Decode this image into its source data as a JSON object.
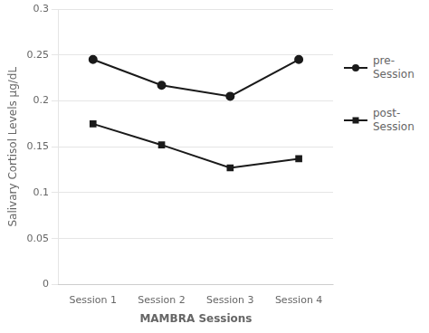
{
  "chart_data": {
    "type": "line",
    "categories": [
      "Session 1",
      "Session 2",
      "Session 3",
      "Session 4"
    ],
    "series": [
      {
        "name": "pre-\nSession",
        "color": "#1a1a1a",
        "marker": "circle",
        "values": [
          0.245,
          0.217,
          0.205,
          0.245
        ]
      },
      {
        "name": "post-\nSession",
        "color": "#1a1a1a",
        "marker": "square",
        "values": [
          0.175,
          0.152,
          0.127,
          0.137
        ]
      }
    ],
    "x_label": "MAMBRA Sessions",
    "y_label": "Salivary Cortisol Levels μg/dL",
    "ylim": [
      0,
      0.3
    ],
    "yticks": [
      0,
      0.05,
      0.1,
      0.15,
      0.2,
      0.25,
      0.3
    ],
    "grid": true,
    "legend": "right"
  }
}
